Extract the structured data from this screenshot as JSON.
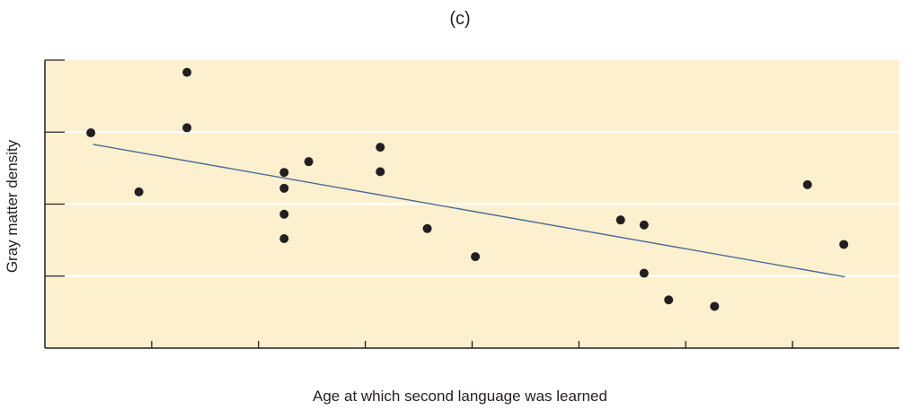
{
  "chart_data": {
    "type": "scatter",
    "title": "(c)",
    "xlabel": "Age at which second language was learned",
    "ylabel": "Gray matter density",
    "xlim": [
      0,
      8
    ],
    "ylim": [
      0,
      4
    ],
    "xticks": [
      1,
      2,
      3,
      4,
      5,
      6,
      7
    ],
    "yticks": [
      1,
      2,
      3
    ],
    "grid": "horizontal",
    "colors": {
      "background": "#fdf0cf",
      "points": "#231f20",
      "trendline": "#4a6b96",
      "grid": "#ffffff"
    },
    "points": [
      [
        0.43,
        2.99
      ],
      [
        0.88,
        2.17
      ],
      [
        1.33,
        3.83
      ],
      [
        1.33,
        3.06
      ],
      [
        2.24,
        2.44
      ],
      [
        2.24,
        2.22
      ],
      [
        2.24,
        1.86
      ],
      [
        2.24,
        1.52
      ],
      [
        2.47,
        2.59
      ],
      [
        3.14,
        2.79
      ],
      [
        3.14,
        2.45
      ],
      [
        3.58,
        1.66
      ],
      [
        4.03,
        1.27
      ],
      [
        5.39,
        1.78
      ],
      [
        5.61,
        1.71
      ],
      [
        5.61,
        1.04
      ],
      [
        5.84,
        0.67
      ],
      [
        6.27,
        0.58
      ],
      [
        7.14,
        2.27
      ],
      [
        7.48,
        1.44
      ]
    ],
    "trendline": {
      "x": [
        0.45,
        7.49
      ],
      "y": [
        2.83,
        0.99
      ]
    }
  }
}
